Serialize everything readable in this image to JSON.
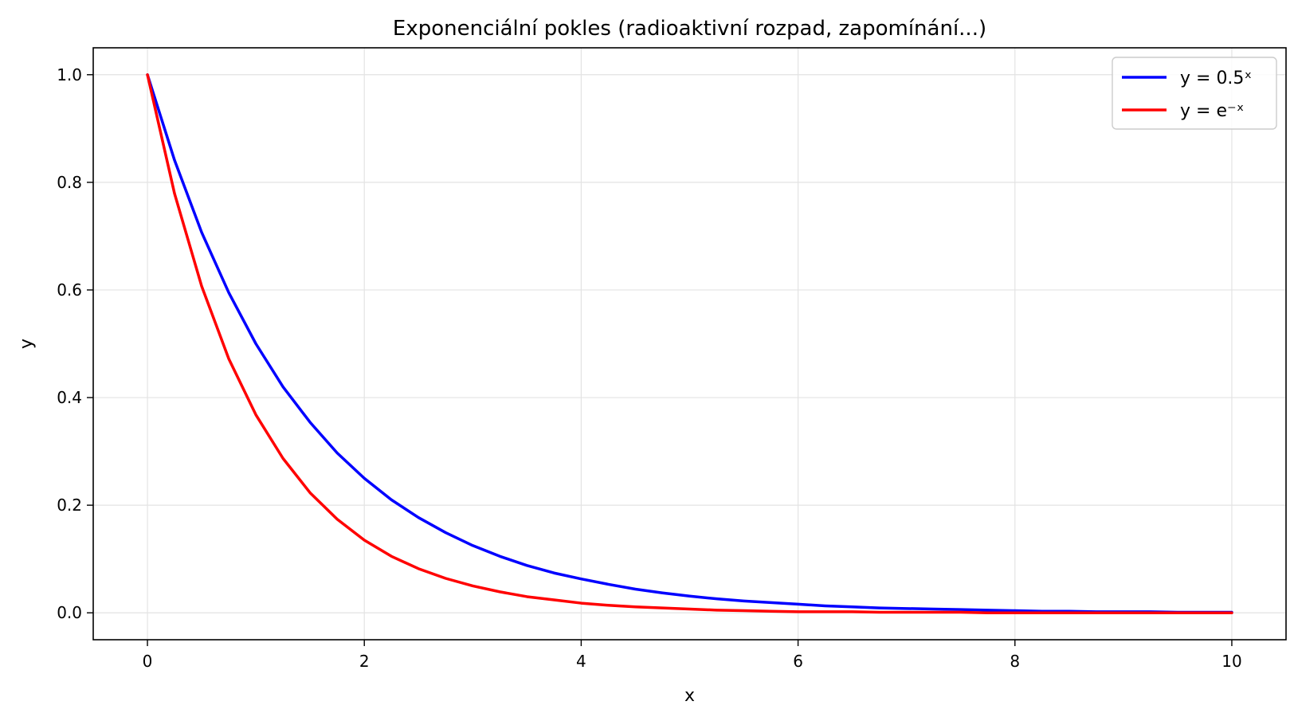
{
  "chart_data": {
    "type": "line",
    "title": "Exponenciální pokles (radioaktivní rozpad, zapomínání...)",
    "xlabel": "x",
    "ylabel": "y",
    "xlim": [
      -0.5,
      10.5
    ],
    "ylim": [
      -0.05,
      1.05
    ],
    "xticks": [
      0,
      2,
      4,
      6,
      8,
      10
    ],
    "xtick_labels": [
      "0",
      "2",
      "4",
      "6",
      "8",
      "10"
    ],
    "yticks": [
      0.0,
      0.2,
      0.4,
      0.6,
      0.8,
      1.0
    ],
    "ytick_labels": [
      "0.0",
      "0.2",
      "0.4",
      "0.6",
      "0.8",
      "1.0"
    ],
    "grid": true,
    "legend_position": "top-right",
    "series": [
      {
        "name": "y = 0.5ˣ",
        "color": "#0000ff",
        "x": [
          0,
          0.25,
          0.5,
          0.75,
          1,
          1.25,
          1.5,
          1.75,
          2,
          2.25,
          2.5,
          2.75,
          3,
          3.25,
          3.5,
          3.75,
          4,
          4.25,
          4.5,
          4.75,
          5,
          5.25,
          5.5,
          5.75,
          6,
          6.25,
          6.5,
          6.75,
          7,
          7.25,
          7.5,
          7.75,
          8,
          8.25,
          8.5,
          8.75,
          9,
          9.25,
          9.5,
          9.75,
          10
        ],
        "y": [
          1.0,
          0.841,
          0.707,
          0.595,
          0.5,
          0.42,
          0.354,
          0.297,
          0.25,
          0.21,
          0.177,
          0.149,
          0.125,
          0.105,
          0.088,
          0.074,
          0.063,
          0.053,
          0.044,
          0.037,
          0.031,
          0.026,
          0.022,
          0.019,
          0.016,
          0.013,
          0.011,
          0.009,
          0.008,
          0.007,
          0.006,
          0.005,
          0.004,
          0.003,
          0.003,
          0.002,
          0.002,
          0.002,
          0.001,
          0.001,
          0.001
        ]
      },
      {
        "name": "y = e⁻ˣ",
        "color": "#ff0000",
        "x": [
          0,
          0.25,
          0.5,
          0.75,
          1,
          1.25,
          1.5,
          1.75,
          2,
          2.25,
          2.5,
          2.75,
          3,
          3.25,
          3.5,
          3.75,
          4,
          4.25,
          4.5,
          4.75,
          5,
          5.25,
          5.5,
          5.75,
          6,
          6.25,
          6.5,
          6.75,
          7,
          7.25,
          7.5,
          7.75,
          8,
          8.25,
          8.5,
          8.75,
          9,
          9.25,
          9.5,
          9.75,
          10
        ],
        "y": [
          1.0,
          0.779,
          0.607,
          0.472,
          0.368,
          0.287,
          0.223,
          0.174,
          0.135,
          0.105,
          0.082,
          0.064,
          0.05,
          0.039,
          0.03,
          0.024,
          0.018,
          0.014,
          0.011,
          0.009,
          0.007,
          0.005,
          0.004,
          0.003,
          0.002,
          0.002,
          0.002,
          0.001,
          0.001,
          0.001,
          0.001,
          0.0,
          0.0,
          0.0,
          0.0,
          0.0,
          0.0,
          0.0,
          0.0,
          0.0,
          0.0
        ]
      }
    ]
  }
}
